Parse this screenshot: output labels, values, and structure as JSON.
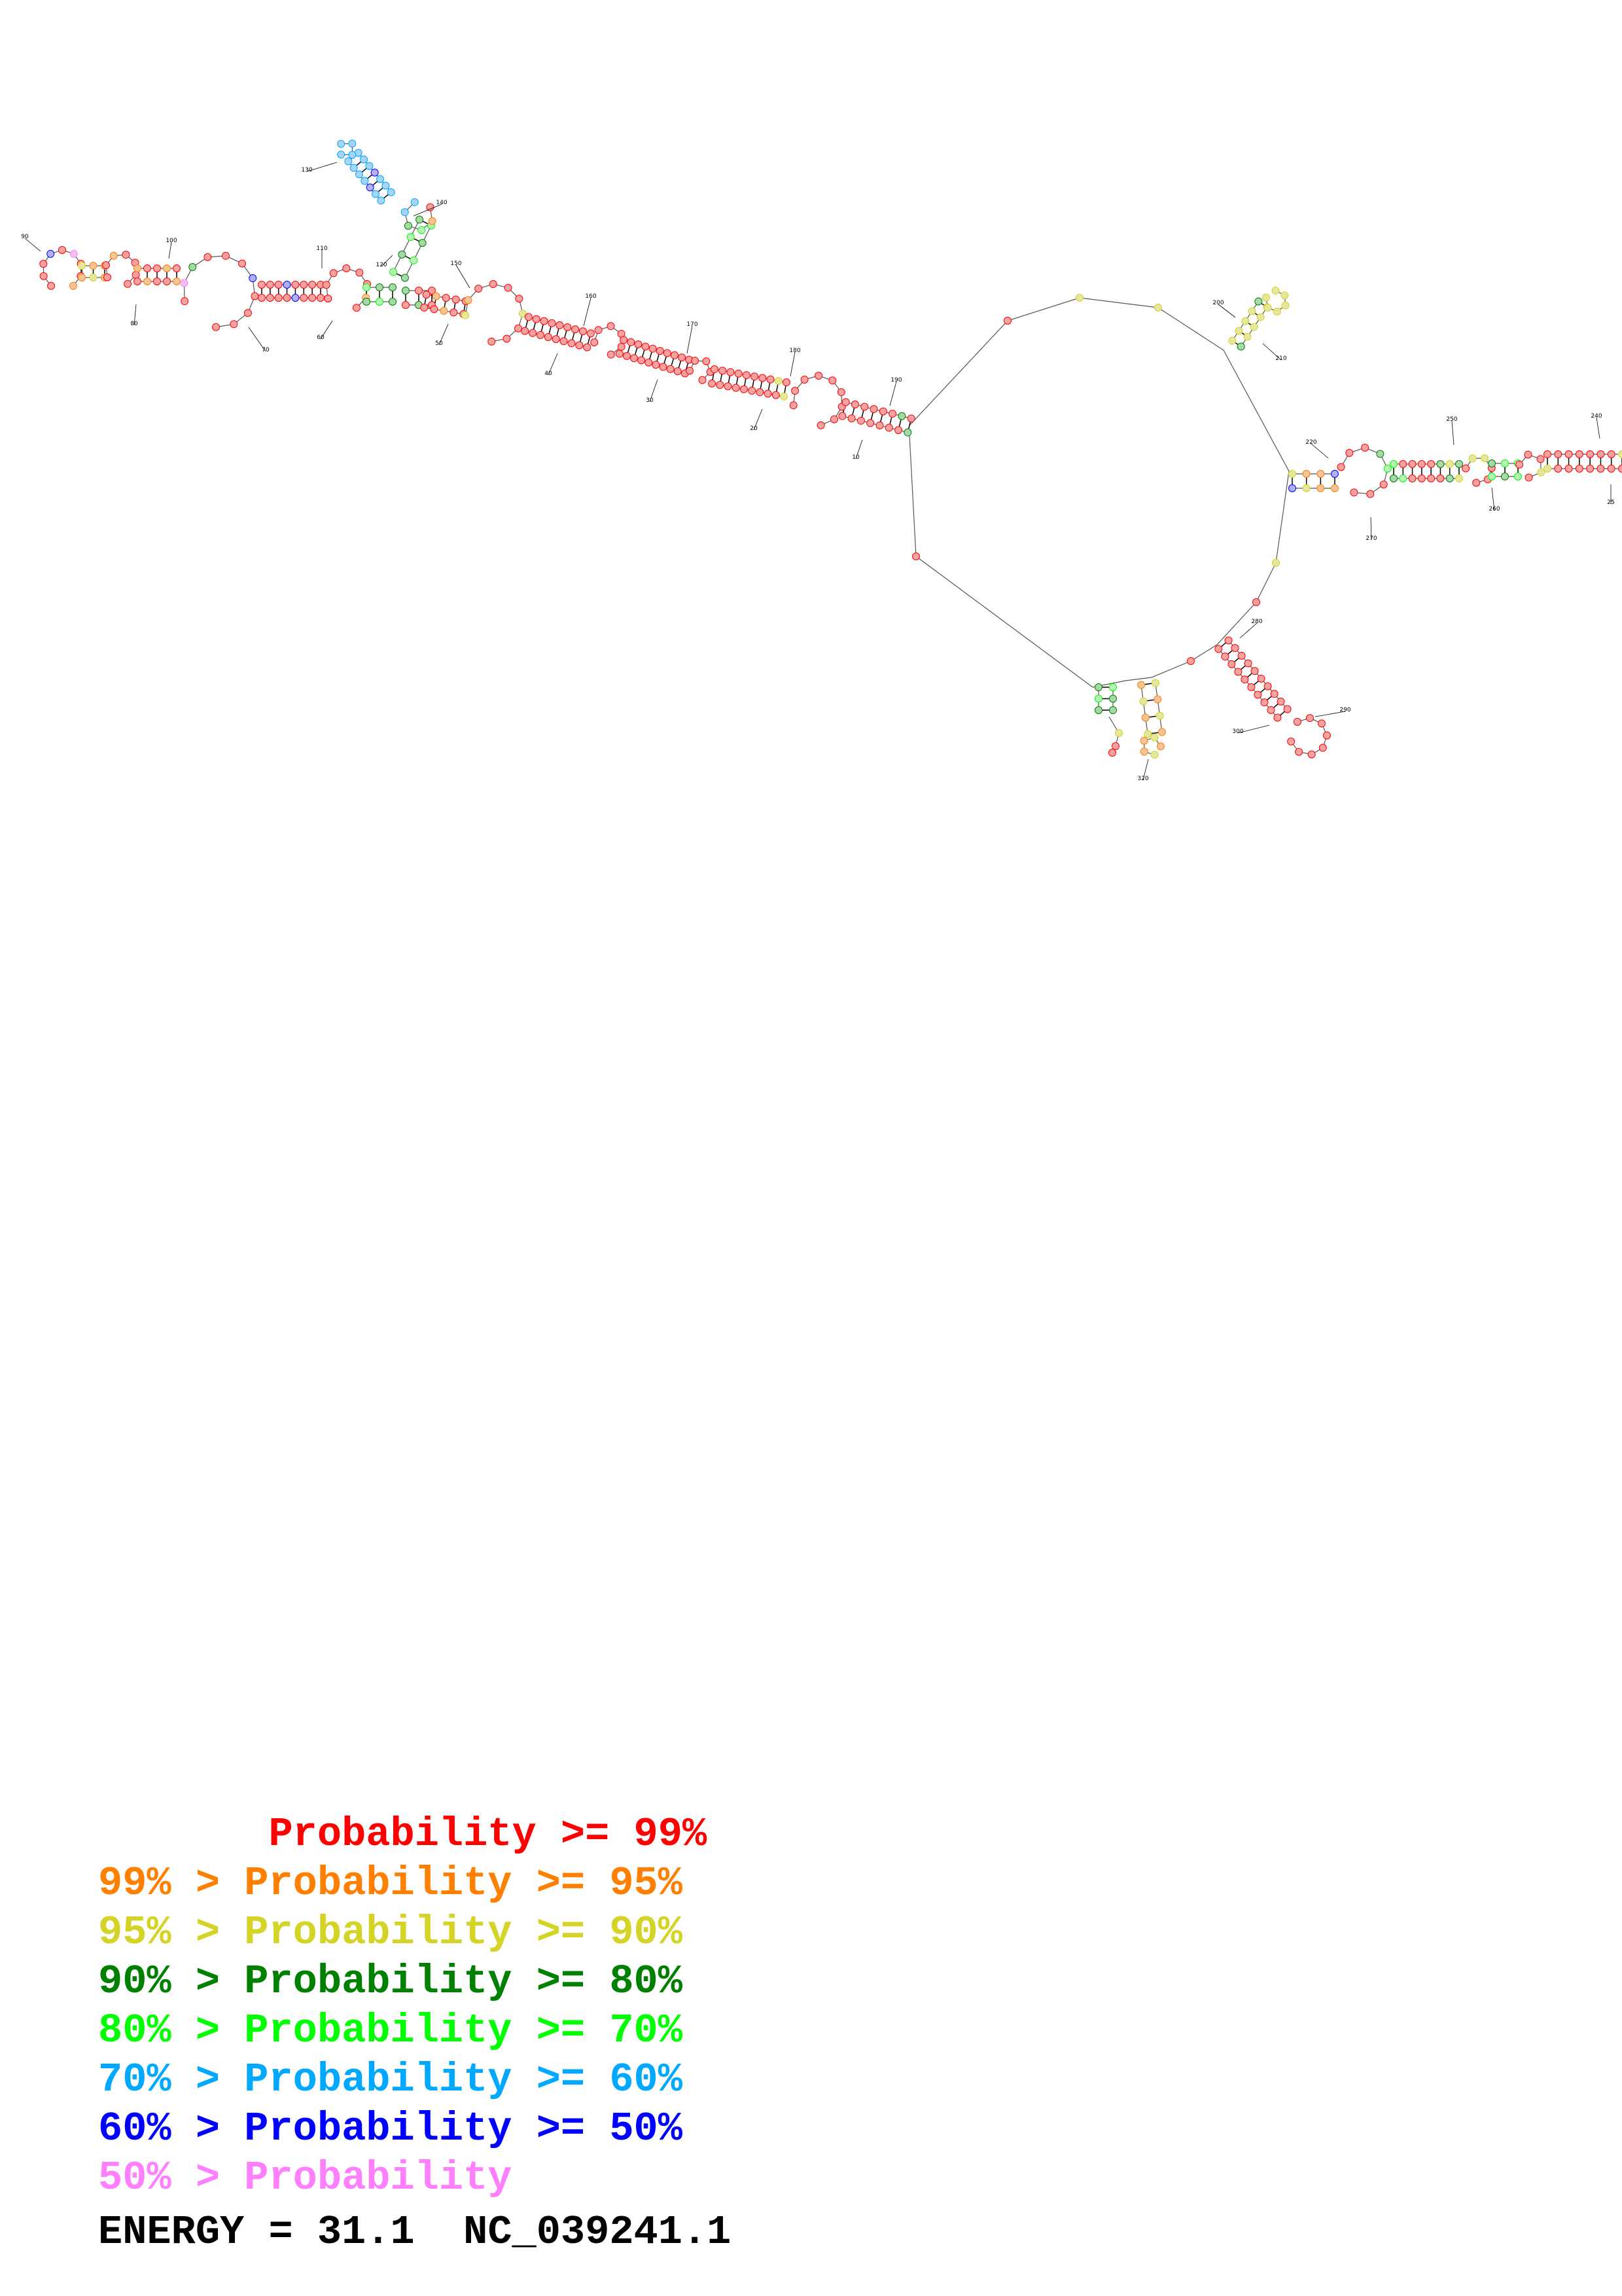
{
  "structure": {
    "position_labels": [
      "90",
      "100",
      "80",
      "70",
      "110",
      "60",
      "130",
      "140",
      "120",
      "150",
      "50",
      "160",
      "40",
      "170",
      "30",
      "180",
      "20",
      "190",
      "10",
      "200",
      "210",
      "220",
      "250",
      "240",
      "260",
      "270",
      "25",
      "280",
      "290",
      "300",
      "320"
    ]
  },
  "legend": {
    "colors": [
      "#ff0000",
      "#ff8000",
      "#d4d426",
      "#008000",
      "#00ff00",
      "#00a8ff",
      "#0000ff",
      "#ff80ff"
    ],
    "rows": [
      {
        "prefix": "       ",
        "label": "Probability >= 99%"
      },
      {
        "prefix": "99% > ",
        "label": "Probability >= 95%"
      },
      {
        "prefix": "95% > ",
        "label": "Probability >= 90%"
      },
      {
        "prefix": "90% > ",
        "label": "Probability >= 80%"
      },
      {
        "prefix": "80% > ",
        "label": "Probability >= 70%"
      },
      {
        "prefix": "70% > ",
        "label": "Probability >= 60%"
      },
      {
        "prefix": "60% > ",
        "label": "Probability >= 50%"
      },
      {
        "prefix": "50% > ",
        "label": "Probability"
      }
    ]
  },
  "footer": {
    "energy": "ENERGY = 31.1",
    "accession": "NC_039241.1"
  }
}
